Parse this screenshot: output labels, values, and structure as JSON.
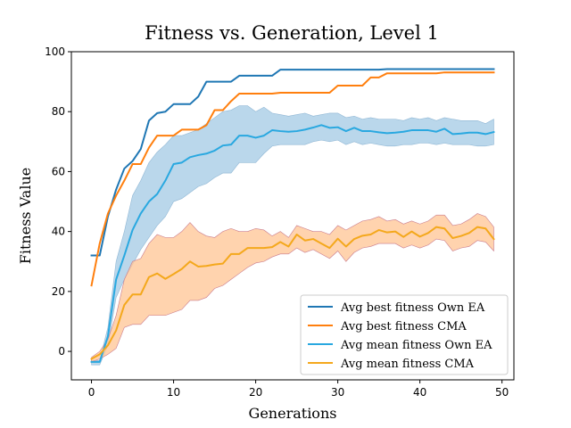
{
  "chart_data": {
    "type": "line",
    "title": "Fitness vs. Generation, Level 1",
    "xlabel": "Generations",
    "ylabel": "Fitness Value",
    "xlim": [
      -2.45,
      51.45
    ],
    "ylim": [
      -9.5,
      100
    ],
    "xticks": [
      0,
      10,
      20,
      30,
      40,
      50
    ],
    "yticks": [
      0,
      20,
      40,
      60,
      80,
      100
    ],
    "grid": false,
    "legend_position": "lower-right",
    "x": [
      0,
      1,
      2,
      3,
      4,
      5,
      6,
      7,
      8,
      9,
      10,
      11,
      12,
      13,
      14,
      15,
      16,
      17,
      18,
      19,
      20,
      21,
      22,
      23,
      24,
      25,
      26,
      27,
      28,
      29,
      30,
      31,
      32,
      33,
      34,
      35,
      36,
      37,
      38,
      39,
      40,
      41,
      42,
      43,
      44,
      45,
      46,
      47,
      48,
      49
    ],
    "series": [
      {
        "name": "Avg best fitness Own EA",
        "color": "#1f77b4",
        "values": [
          32,
          32,
          45,
          54,
          61,
          63.5,
          67.5,
          77,
          79.5,
          80,
          82.5,
          82.5,
          82.5,
          85,
          90,
          90,
          90,
          90,
          92,
          92,
          92,
          92,
          92,
          94,
          94,
          94,
          94,
          94,
          94,
          94,
          94,
          94,
          94,
          94,
          94,
          94,
          94.2,
          94.2,
          94.2,
          94.2,
          94.2,
          94.2,
          94.2,
          94.2,
          94.2,
          94.2,
          94.2,
          94.2,
          94.2,
          94.2
        ]
      },
      {
        "name": "Avg best fitness CMA",
        "color": "#ff7f0e",
        "values": [
          22,
          36,
          46,
          52,
          57,
          62.5,
          62.5,
          68,
          72,
          72,
          72,
          74,
          74,
          74,
          75.5,
          80.5,
          80.5,
          83.5,
          86,
          86,
          86,
          86,
          86,
          86.3,
          86.3,
          86.3,
          86.3,
          86.3,
          86.3,
          86.3,
          88.7,
          88.7,
          88.7,
          88.7,
          91.4,
          91.4,
          92.8,
          92.8,
          92.8,
          92.8,
          92.8,
          92.8,
          92.8,
          93.1,
          93.1,
          93.1,
          93.1,
          93.1,
          93.1,
          93.1
        ]
      },
      {
        "name": "Avg mean fitness Own EA",
        "color": "#29a8e0",
        "values": [
          -3.5,
          -3.5,
          5,
          24,
          32,
          40.5,
          46,
          50,
          52.5,
          57,
          62.5,
          63,
          64.8,
          65.5,
          66,
          67,
          68.7,
          69,
          72,
          72,
          71.3,
          72,
          73.8,
          73.5,
          73.3,
          73.5,
          74,
          74.7,
          75.5,
          74.6,
          74.8,
          73.5,
          74.6,
          73.5,
          73.5,
          73.1,
          72.8,
          73,
          73.3,
          73.8,
          73.8,
          73.8,
          73.3,
          74.3,
          72.5,
          72.7,
          73,
          73,
          72.5,
          73.2
        ],
        "band_upper": [
          -3,
          -3,
          8,
          30,
          40,
          52,
          57,
          63,
          66.5,
          69,
          72,
          72,
          73,
          74,
          76,
          78,
          80,
          80.5,
          82,
          82,
          80,
          81.5,
          79.5,
          79,
          78.5,
          79,
          79.5,
          78.5,
          79,
          79.5,
          79.5,
          78,
          78.5,
          77.5,
          78,
          77.5,
          77.5,
          77.5,
          77,
          78,
          77.5,
          78,
          77,
          78,
          77.5,
          77,
          77,
          77,
          76,
          77.5
        ],
        "band_lower": [
          -4.5,
          -4.5,
          2,
          18,
          24,
          29,
          34,
          38,
          42,
          45,
          50,
          51,
          53,
          55,
          56,
          58,
          59.5,
          59.5,
          63,
          63,
          63,
          66,
          68.5,
          69,
          69,
          69,
          69,
          70,
          70.5,
          70,
          70.5,
          69,
          70,
          69,
          69.5,
          69,
          68.5,
          68.5,
          69,
          69,
          69.5,
          69.5,
          69,
          69.5,
          69,
          69,
          69,
          68.5,
          68.5,
          69
        ]
      },
      {
        "name": "Avg mean fitness CMA",
        "color": "#f4a81c",
        "values": [
          -2.5,
          -1,
          2,
          7,
          15.5,
          19,
          19,
          24.8,
          26,
          24.2,
          25.8,
          27.5,
          30,
          28.3,
          28.5,
          29,
          29.3,
          32.5,
          32.5,
          34.5,
          34.5,
          34.5,
          34.8,
          36.5,
          35,
          39,
          37,
          37.5,
          36,
          34.5,
          37.6,
          35,
          37.5,
          38.6,
          39,
          40.5,
          39.7,
          40,
          38.2,
          40,
          38.3,
          39.5,
          41.5,
          41,
          37.8,
          38.5,
          39.5,
          41.5,
          41,
          37.5
        ],
        "band_upper": [
          -2,
          0,
          4,
          12,
          24,
          30,
          31,
          36,
          39,
          38,
          38,
          40,
          43,
          40,
          38.5,
          38,
          40,
          41,
          40,
          40,
          41,
          40.5,
          38.5,
          40,
          38,
          42,
          41,
          40,
          40,
          39,
          42,
          40.5,
          42,
          43.5,
          44,
          45,
          43.5,
          44,
          42.5,
          43.5,
          42.5,
          43.5,
          45.5,
          45.5,
          42,
          42.5,
          44,
          46,
          45,
          41.5
        ],
        "band_lower": [
          -3.5,
          -2.5,
          -1,
          1,
          8,
          9,
          9,
          12,
          12,
          12,
          13,
          14,
          17,
          17,
          18,
          21,
          22,
          24,
          26,
          28,
          29.5,
          30,
          31.5,
          32.5,
          32.5,
          34.5,
          33,
          34,
          32.5,
          31,
          33.5,
          30,
          33,
          34.5,
          35,
          36,
          36,
          36,
          34.5,
          35.5,
          34.5,
          35.5,
          37.5,
          37,
          33.5,
          34.5,
          35,
          37,
          36.5,
          33.5
        ]
      }
    ]
  }
}
